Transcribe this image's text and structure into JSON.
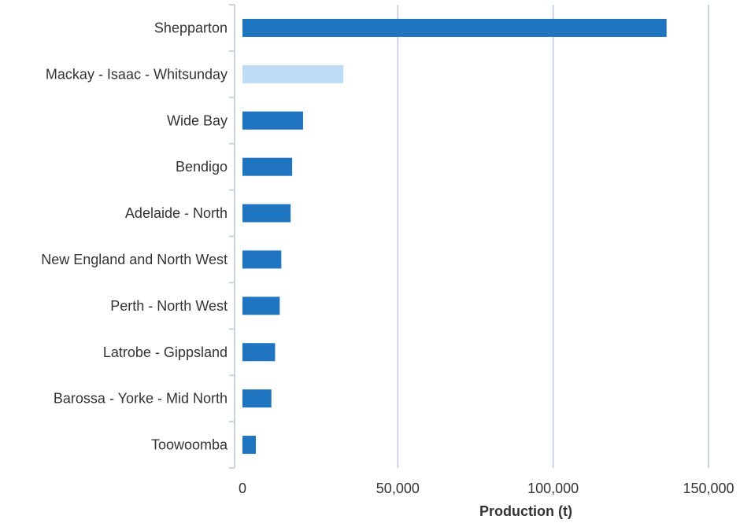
{
  "chart_data": {
    "type": "bar",
    "orientation": "horizontal",
    "categories": [
      "Shepparton",
      "Mackay - Isaac - Whitsunday",
      "Wide Bay",
      "Bendigo",
      "Adelaide - North",
      "New England and North West",
      "Perth - North West",
      "Latrobe - Gippsland",
      "Barossa - Yorke - Mid North",
      "Toowoomba"
    ],
    "values": [
      136500,
      32500,
      19500,
      16000,
      15500,
      12500,
      12000,
      10500,
      9300,
      4300
    ],
    "highlight_index": 1,
    "xlabel": "Production (t)",
    "ylabel": "",
    "xlim": [
      0,
      150000
    ],
    "xticks": [
      0,
      50000,
      100000,
      150000
    ],
    "xtick_labels": [
      "0",
      "50,000",
      "100,000",
      "150,000"
    ],
    "grid": true,
    "legend": "none",
    "colors": {
      "bar": "#1f75bf",
      "highlight": "#bfdcf5",
      "grid": "#c9d3de",
      "text": "#333333"
    }
  }
}
